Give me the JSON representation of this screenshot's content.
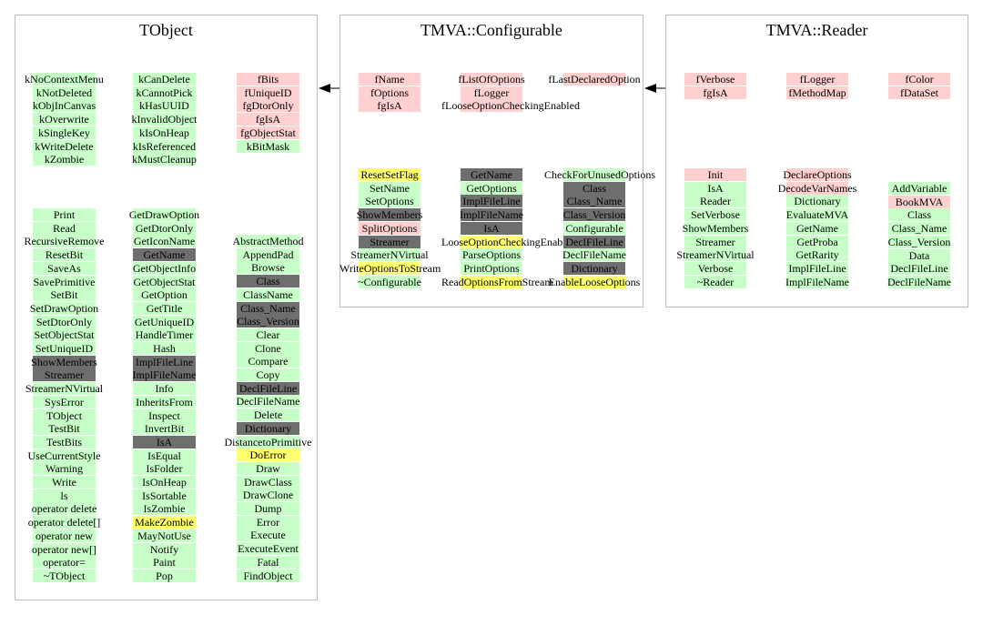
{
  "colors": {
    "data": "#ffd0d0",
    "public": "#c8ffc8",
    "inherited": "#6e6e6e",
    "virtual": "#ffff70",
    "border": "#bdbdbd"
  },
  "classes": [
    {
      "title": "TObject",
      "columns": [
        {
          "members": [
            {
              "name": "kNoContextMenu",
              "kind": "public"
            },
            {
              "name": "kNotDeleted",
              "kind": "public"
            },
            {
              "name": "kObjInCanvas",
              "kind": "public"
            },
            {
              "name": "kOverwrite",
              "kind": "public"
            },
            {
              "name": "kSingleKey",
              "kind": "public"
            },
            {
              "name": "kWriteDelete",
              "kind": "public"
            },
            {
              "name": "kZombie",
              "kind": "public"
            }
          ]
        },
        {
          "members": [
            {
              "name": "kCanDelete",
              "kind": "public"
            },
            {
              "name": "kCannotPick",
              "kind": "public"
            },
            {
              "name": "kHasUUID",
              "kind": "public"
            },
            {
              "name": "kInvalidObject",
              "kind": "public"
            },
            {
              "name": "kIsOnHeap",
              "kind": "public"
            },
            {
              "name": "kIsReferenced",
              "kind": "public"
            },
            {
              "name": "kMustCleanup",
              "kind": "public"
            }
          ]
        },
        {
          "members": [
            {
              "name": "fBits",
              "kind": "data"
            },
            {
              "name": "fUniqueID",
              "kind": "data"
            },
            {
              "name": "fgDtorOnly",
              "kind": "data"
            },
            {
              "name": "fgIsA",
              "kind": "data"
            },
            {
              "name": "fgObjectStat",
              "kind": "data"
            },
            {
              "name": "kBitMask",
              "kind": "public"
            }
          ]
        },
        {
          "members": [
            {
              "name": "Print",
              "kind": "public"
            },
            {
              "name": "Read",
              "kind": "public"
            },
            {
              "name": "RecursiveRemove",
              "kind": "public"
            },
            {
              "name": "ResetBit",
              "kind": "public"
            },
            {
              "name": "SaveAs",
              "kind": "public"
            },
            {
              "name": "SavePrimitive",
              "kind": "public"
            },
            {
              "name": "SetBit",
              "kind": "public"
            },
            {
              "name": "SetDrawOption",
              "kind": "public"
            },
            {
              "name": "SetDtorOnly",
              "kind": "public"
            },
            {
              "name": "SetObjectStat",
              "kind": "public"
            },
            {
              "name": "SetUniqueID",
              "kind": "public"
            },
            {
              "name": "ShowMembers",
              "kind": "inherited"
            },
            {
              "name": "Streamer",
              "kind": "inherited"
            },
            {
              "name": "StreamerNVirtual",
              "kind": "public"
            },
            {
              "name": "SysError",
              "kind": "public"
            },
            {
              "name": "TObject",
              "kind": "public"
            },
            {
              "name": "TestBit",
              "kind": "public"
            },
            {
              "name": "TestBits",
              "kind": "public"
            },
            {
              "name": "UseCurrentStyle",
              "kind": "public"
            },
            {
              "name": "Warning",
              "kind": "public"
            },
            {
              "name": "Write",
              "kind": "public"
            },
            {
              "name": "ls",
              "kind": "public"
            },
            {
              "name": "operator delete",
              "kind": "public"
            },
            {
              "name": "operator delete[]",
              "kind": "public"
            },
            {
              "name": "operator new",
              "kind": "public"
            },
            {
              "name": "operator new[]",
              "kind": "public"
            },
            {
              "name": "operator=",
              "kind": "public"
            },
            {
              "name": "~TObject",
              "kind": "public"
            }
          ]
        },
        {
          "members": [
            {
              "name": "GetDrawOption",
              "kind": "public"
            },
            {
              "name": "GetDtorOnly",
              "kind": "public"
            },
            {
              "name": "GetIconName",
              "kind": "public"
            },
            {
              "name": "GetName",
              "kind": "inherited"
            },
            {
              "name": "GetObjectInfo",
              "kind": "public"
            },
            {
              "name": "GetObjectStat",
              "kind": "public"
            },
            {
              "name": "GetOption",
              "kind": "public"
            },
            {
              "name": "GetTitle",
              "kind": "public"
            },
            {
              "name": "GetUniqueID",
              "kind": "public"
            },
            {
              "name": "HandleTimer",
              "kind": "public"
            },
            {
              "name": "Hash",
              "kind": "public"
            },
            {
              "name": "ImplFileLine",
              "kind": "inherited"
            },
            {
              "name": "ImplFileName",
              "kind": "inherited"
            },
            {
              "name": "Info",
              "kind": "public"
            },
            {
              "name": "InheritsFrom",
              "kind": "public"
            },
            {
              "name": "Inspect",
              "kind": "public"
            },
            {
              "name": "InvertBit",
              "kind": "public"
            },
            {
              "name": "IsA",
              "kind": "inherited"
            },
            {
              "name": "IsEqual",
              "kind": "public"
            },
            {
              "name": "IsFolder",
              "kind": "public"
            },
            {
              "name": "IsOnHeap",
              "kind": "public"
            },
            {
              "name": "IsSortable",
              "kind": "public"
            },
            {
              "name": "IsZombie",
              "kind": "public"
            },
            {
              "name": "MakeZombie",
              "kind": "virtual"
            },
            {
              "name": "MayNotUse",
              "kind": "public"
            },
            {
              "name": "Notify",
              "kind": "public"
            },
            {
              "name": "Paint",
              "kind": "public"
            },
            {
              "name": "Pop",
              "kind": "public"
            }
          ]
        },
        {
          "members": [
            {
              "name": "AbstractMethod",
              "kind": "public"
            },
            {
              "name": "AppendPad",
              "kind": "public"
            },
            {
              "name": "Browse",
              "kind": "public"
            },
            {
              "name": "Class",
              "kind": "inherited"
            },
            {
              "name": "ClassName",
              "kind": "public"
            },
            {
              "name": "Class_Name",
              "kind": "inherited"
            },
            {
              "name": "Class_Version",
              "kind": "inherited"
            },
            {
              "name": "Clear",
              "kind": "public"
            },
            {
              "name": "Clone",
              "kind": "public"
            },
            {
              "name": "Compare",
              "kind": "public"
            },
            {
              "name": "Copy",
              "kind": "public"
            },
            {
              "name": "DeclFileLine",
              "kind": "inherited"
            },
            {
              "name": "DeclFileName",
              "kind": "public"
            },
            {
              "name": "Delete",
              "kind": "public"
            },
            {
              "name": "Dictionary",
              "kind": "inherited"
            },
            {
              "name": "DistancetoPrimitive",
              "kind": "public"
            },
            {
              "name": "DoError",
              "kind": "virtual"
            },
            {
              "name": "Draw",
              "kind": "public"
            },
            {
              "name": "DrawClass",
              "kind": "public"
            },
            {
              "name": "DrawClone",
              "kind": "public"
            },
            {
              "name": "Dump",
              "kind": "public"
            },
            {
              "name": "Error",
              "kind": "public"
            },
            {
              "name": "Execute",
              "kind": "public"
            },
            {
              "name": "ExecuteEvent",
              "kind": "public"
            },
            {
              "name": "Fatal",
              "kind": "public"
            },
            {
              "name": "FindObject",
              "kind": "public"
            }
          ]
        }
      ]
    },
    {
      "title": "TMVA::Configurable",
      "columns": [
        {
          "members": [
            {
              "name": "fName",
              "kind": "data"
            },
            {
              "name": "fOptions",
              "kind": "data"
            },
            {
              "name": "fgIsA",
              "kind": "data"
            }
          ]
        },
        {
          "members": [
            {
              "name": "fListOfOptions",
              "kind": "data"
            },
            {
              "name": "fLogger",
              "kind": "data"
            },
            {
              "name": "fLooseOptionCheckingEnabled",
              "kind": "data"
            }
          ]
        },
        {
          "members": [
            {
              "name": "fLastDeclaredOption",
              "kind": "data"
            }
          ]
        },
        {
          "members": [
            {
              "name": "ResetSetFlag",
              "kind": "virtual"
            },
            {
              "name": "SetName",
              "kind": "public"
            },
            {
              "name": "SetOptions",
              "kind": "public"
            },
            {
              "name": "ShowMembers",
              "kind": "inherited"
            },
            {
              "name": "SplitOptions",
              "kind": "data"
            },
            {
              "name": "Streamer",
              "kind": "inherited"
            },
            {
              "name": "StreamerNVirtual",
              "kind": "public"
            },
            {
              "name": "WriteOptionsToStream",
              "kind": "virtual"
            },
            {
              "name": "~Configurable",
              "kind": "public"
            }
          ]
        },
        {
          "members": [
            {
              "name": "GetName",
              "kind": "inherited"
            },
            {
              "name": "GetOptions",
              "kind": "public"
            },
            {
              "name": "ImplFileLine",
              "kind": "inherited"
            },
            {
              "name": "ImplFileName",
              "kind": "inherited"
            },
            {
              "name": "IsA",
              "kind": "inherited"
            },
            {
              "name": "LooseOptionCheckingEnabled",
              "kind": "virtual"
            },
            {
              "name": "ParseOptions",
              "kind": "public"
            },
            {
              "name": "PrintOptions",
              "kind": "public"
            },
            {
              "name": "ReadOptionsFromStream",
              "kind": "virtual"
            }
          ]
        },
        {
          "members": [
            {
              "name": "CheckForUnusedOptions",
              "kind": "public"
            },
            {
              "name": "Class",
              "kind": "inherited"
            },
            {
              "name": "Class_Name",
              "kind": "inherited"
            },
            {
              "name": "Class_Version",
              "kind": "inherited"
            },
            {
              "name": "Configurable",
              "kind": "public"
            },
            {
              "name": "DeclFileLine",
              "kind": "inherited"
            },
            {
              "name": "DeclFileName",
              "kind": "public"
            },
            {
              "name": "Dictionary",
              "kind": "inherited"
            },
            {
              "name": "EnableLooseOptions",
              "kind": "virtual"
            }
          ]
        }
      ]
    },
    {
      "title": "TMVA::Reader",
      "columns": [
        {
          "members": [
            {
              "name": "fVerbose",
              "kind": "data"
            },
            {
              "name": "fgIsA",
              "kind": "data"
            }
          ]
        },
        {
          "members": [
            {
              "name": "fLogger",
              "kind": "data"
            },
            {
              "name": "fMethodMap",
              "kind": "data"
            }
          ]
        },
        {
          "members": [
            {
              "name": "fColor",
              "kind": "data"
            },
            {
              "name": "fDataSet",
              "kind": "data"
            }
          ]
        },
        {
          "members": [
            {
              "name": "Init",
              "kind": "data"
            },
            {
              "name": "IsA",
              "kind": "public"
            },
            {
              "name": "Reader",
              "kind": "public"
            },
            {
              "name": "SetVerbose",
              "kind": "public"
            },
            {
              "name": "ShowMembers",
              "kind": "public"
            },
            {
              "name": "Streamer",
              "kind": "public"
            },
            {
              "name": "StreamerNVirtual",
              "kind": "public"
            },
            {
              "name": "Verbose",
              "kind": "public"
            },
            {
              "name": "~Reader",
              "kind": "public"
            }
          ]
        },
        {
          "members": [
            {
              "name": "DeclareOptions",
              "kind": "data"
            },
            {
              "name": "DecodeVarNames",
              "kind": "data"
            },
            {
              "name": "Dictionary",
              "kind": "public"
            },
            {
              "name": "EvaluateMVA",
              "kind": "public"
            },
            {
              "name": "GetName",
              "kind": "public"
            },
            {
              "name": "GetProba",
              "kind": "public"
            },
            {
              "name": "GetRarity",
              "kind": "public"
            },
            {
              "name": "ImplFileLine",
              "kind": "public"
            },
            {
              "name": "ImplFileName",
              "kind": "public"
            }
          ]
        },
        {
          "members": [
            {
              "name": "AddVariable",
              "kind": "public"
            },
            {
              "name": "BookMVA",
              "kind": "data"
            },
            {
              "name": "Class",
              "kind": "public"
            },
            {
              "name": "Class_Name",
              "kind": "public"
            },
            {
              "name": "Class_Version",
              "kind": "public"
            },
            {
              "name": "Data",
              "kind": "public"
            },
            {
              "name": "DeclFileLine",
              "kind": "public"
            },
            {
              "name": "DeclFileName",
              "kind": "public"
            }
          ]
        }
      ]
    }
  ]
}
